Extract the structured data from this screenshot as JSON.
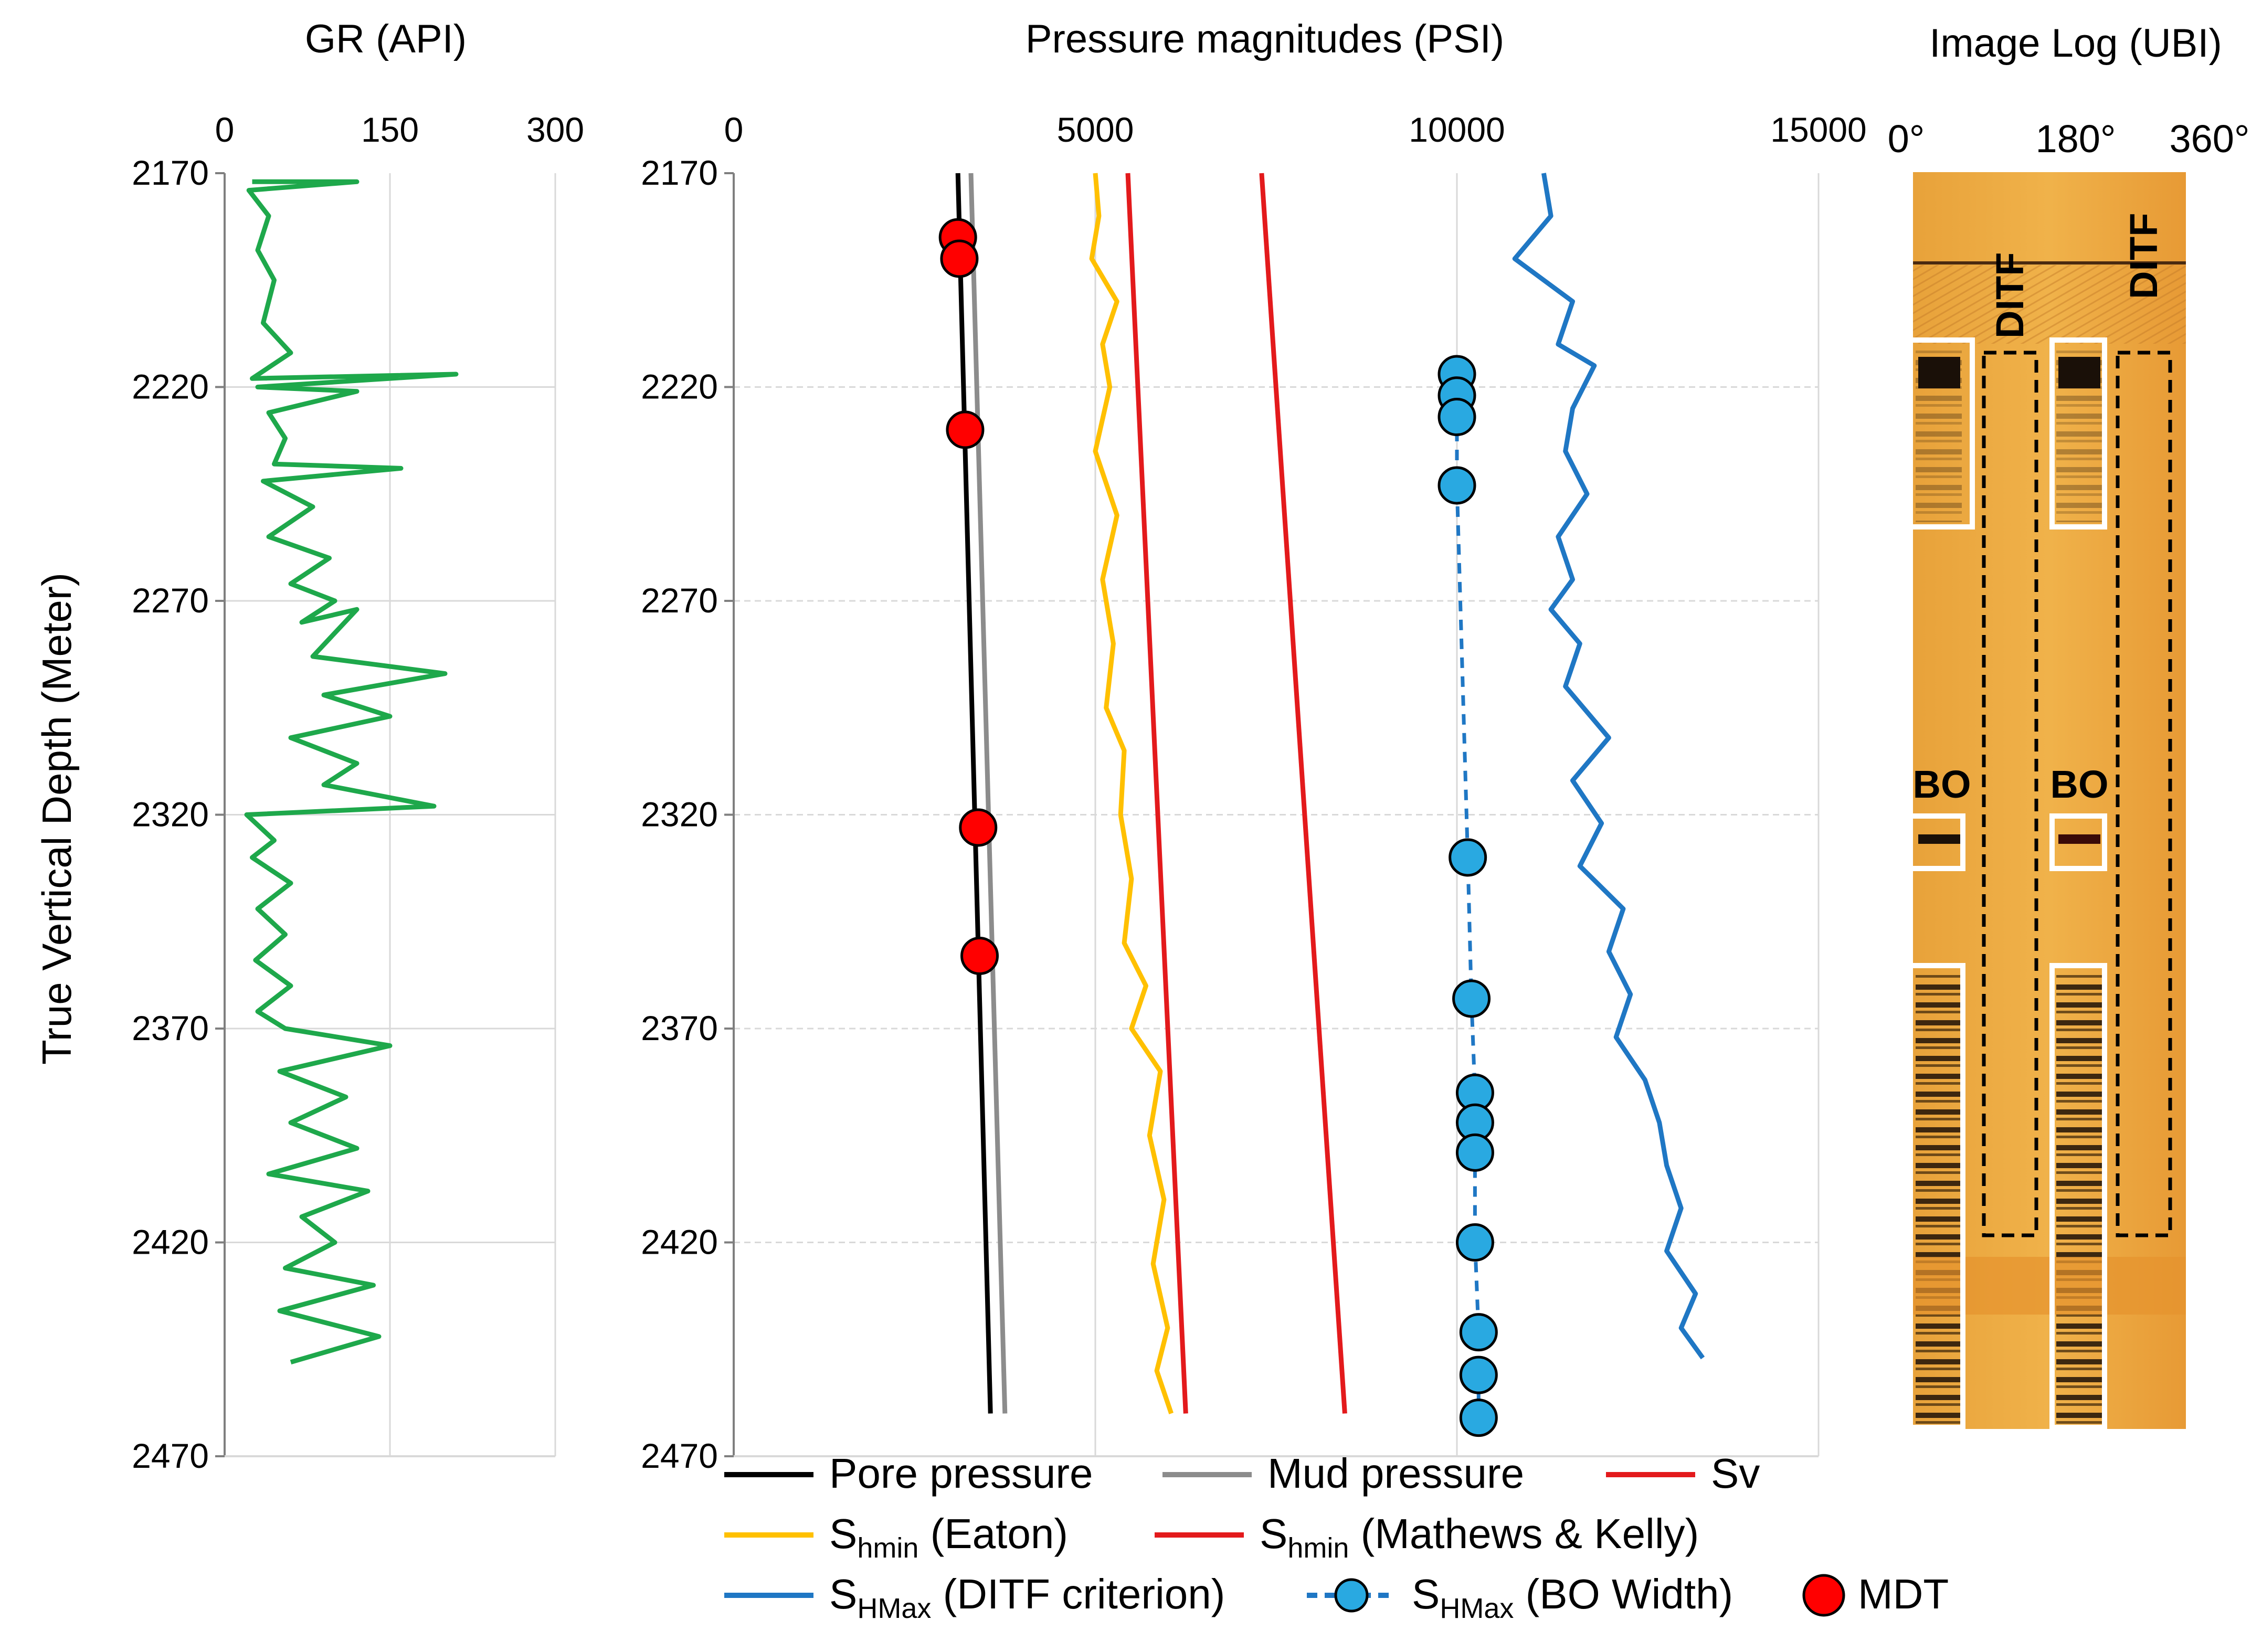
{
  "chart_data": [
    {
      "type": "line",
      "title": "GR (API)",
      "ylabel": "True Vertical Depth (Meter)",
      "xlim": [
        0,
        300
      ],
      "ylim": [
        2170,
        2470
      ],
      "y_inverted": true,
      "xticks": [
        "0",
        "150",
        "300"
      ],
      "yticks": [
        "2170",
        "2220",
        "2270",
        "2320",
        "2370",
        "2420",
        "2470"
      ],
      "grid": true,
      "series": [
        {
          "color": "#1ea84b",
          "points": [
            [
              25,
              2172
            ],
            [
              120,
              2172
            ],
            [
              22,
              2174
            ],
            [
              40,
              2180
            ],
            [
              30,
              2188
            ],
            [
              45,
              2195
            ],
            [
              35,
              2205
            ],
            [
              60,
              2212
            ],
            [
              25,
              2218
            ],
            [
              210,
              2217
            ],
            [
              30,
              2220
            ],
            [
              120,
              2221
            ],
            [
              40,
              2226
            ],
            [
              55,
              2232
            ],
            [
              45,
              2238
            ],
            [
              160,
              2239
            ],
            [
              35,
              2242
            ],
            [
              80,
              2248
            ],
            [
              40,
              2255
            ],
            [
              95,
              2260
            ],
            [
              60,
              2266
            ],
            [
              100,
              2270
            ],
            [
              70,
              2275
            ],
            [
              120,
              2272
            ],
            [
              80,
              2283
            ],
            [
              200,
              2287
            ],
            [
              90,
              2292
            ],
            [
              150,
              2297
            ],
            [
              60,
              2302
            ],
            [
              120,
              2308
            ],
            [
              90,
              2313
            ],
            [
              190,
              2318
            ],
            [
              20,
              2320
            ],
            [
              45,
              2326
            ],
            [
              25,
              2330
            ],
            [
              60,
              2336
            ],
            [
              30,
              2342
            ],
            [
              55,
              2348
            ],
            [
              28,
              2354
            ],
            [
              60,
              2360
            ],
            [
              30,
              2366
            ],
            [
              55,
              2370
            ],
            [
              150,
              2374
            ],
            [
              50,
              2380
            ],
            [
              110,
              2386
            ],
            [
              60,
              2392
            ],
            [
              120,
              2398
            ],
            [
              40,
              2404
            ],
            [
              130,
              2408
            ],
            [
              70,
              2414
            ],
            [
              100,
              2420
            ],
            [
              55,
              2426
            ],
            [
              135,
              2430
            ],
            [
              50,
              2436
            ],
            [
              140,
              2442
            ],
            [
              60,
              2448
            ]
          ]
        }
      ]
    },
    {
      "type": "line",
      "title": "Pressure magnitudes (PSI)",
      "xlim": [
        0,
        15000
      ],
      "ylim": [
        2170,
        2470
      ],
      "y_inverted": true,
      "xticks": [
        "0",
        "5000",
        "10000",
        "15000"
      ],
      "yticks": [
        "2170",
        "2220",
        "2270",
        "2320",
        "2370",
        "2420",
        "2470"
      ],
      "grid": true,
      "legend": "bottom",
      "series": [
        {
          "name": "Pore pressure",
          "color": "#000000",
          "points": [
            [
              3100,
              2170
            ],
            [
              3550,
              2460
            ]
          ]
        },
        {
          "name": "Mud pressure",
          "color": "#8c8c8c",
          "points": [
            [
              3280,
              2170
            ],
            [
              3750,
              2460
            ]
          ]
        },
        {
          "name": "Sv",
          "color": "#e31a1c",
          "points": [
            [
              7300,
              2170
            ],
            [
              8450,
              2460
            ]
          ]
        },
        {
          "name": "S",
          "sub": "hmin",
          "suffix": " (Eaton)",
          "color": "#ffc000",
          "points": [
            [
              5000,
              2170
            ],
            [
              5050,
              2180
            ],
            [
              4950,
              2190
            ],
            [
              5300,
              2200
            ],
            [
              5100,
              2210
            ],
            [
              5200,
              2220
            ],
            [
              5000,
              2235
            ],
            [
              5300,
              2250
            ],
            [
              5100,
              2265
            ],
            [
              5250,
              2280
            ],
            [
              5150,
              2295
            ],
            [
              5400,
              2305
            ],
            [
              5350,
              2320
            ],
            [
              5500,
              2335
            ],
            [
              5400,
              2350
            ],
            [
              5700,
              2360
            ],
            [
              5500,
              2370
            ],
            [
              5900,
              2380
            ],
            [
              5750,
              2395
            ],
            [
              5950,
              2410
            ],
            [
              5800,
              2425
            ],
            [
              6000,
              2440
            ],
            [
              5850,
              2450
            ],
            [
              6050,
              2460
            ]
          ]
        },
        {
          "name": "S",
          "sub": "hmin",
          "suffix": " (Mathews & Kelly)",
          "color": "#e31a1c",
          "points": [
            [
              5450,
              2170
            ],
            [
              6250,
              2460
            ]
          ]
        },
        {
          "name": "S",
          "sub": "HMax",
          "suffix": " (DITF criterion)",
          "color": "#1f77c4",
          "points": [
            [
              11200,
              2170
            ],
            [
              11300,
              2180
            ],
            [
              10800,
              2190
            ],
            [
              11600,
              2200
            ],
            [
              11400,
              2210
            ],
            [
              11900,
              2215
            ],
            [
              11600,
              2225
            ],
            [
              11500,
              2235
            ],
            [
              11800,
              2245
            ],
            [
              11400,
              2255
            ],
            [
              11600,
              2265
            ],
            [
              11300,
              2272
            ],
            [
              11700,
              2280
            ],
            [
              11500,
              2290
            ],
            [
              12100,
              2302
            ],
            [
              11600,
              2312
            ],
            [
              12000,
              2322
            ],
            [
              11700,
              2332
            ],
            [
              12300,
              2342
            ],
            [
              12100,
              2352
            ],
            [
              12400,
              2362
            ],
            [
              12200,
              2372
            ],
            [
              12600,
              2382
            ],
            [
              12800,
              2392
            ],
            [
              12900,
              2402
            ],
            [
              13100,
              2412
            ],
            [
              12900,
              2422
            ],
            [
              13300,
              2432
            ],
            [
              13100,
              2440
            ],
            [
              13400,
              2447
            ]
          ]
        },
        {
          "name": "S",
          "sub": "HMax",
          "suffix": " (BO Width)",
          "color": "#1f77c4",
          "dashed": true,
          "marker": "#29a9e1",
          "points": [
            [
              10000,
              2217
            ],
            [
              10000,
              2222
            ],
            [
              10000,
              2227
            ],
            [
              10000,
              2243
            ],
            [
              10150,
              2330
            ],
            [
              10200,
              2363
            ],
            [
              10250,
              2385
            ],
            [
              10250,
              2392
            ],
            [
              10250,
              2399
            ],
            [
              10250,
              2420
            ],
            [
              10300,
              2441
            ],
            [
              10300,
              2451
            ],
            [
              10300,
              2461
            ]
          ]
        },
        {
          "name": "MDT",
          "marker": "#ff0000",
          "markers_only": true,
          "points": [
            [
              3100,
              2185
            ],
            [
              3120,
              2190
            ],
            [
              3200,
              2230
            ],
            [
              3380,
              2323
            ],
            [
              3400,
              2353
            ]
          ]
        }
      ]
    },
    {
      "type": "image",
      "title": "Image Log (UBI)",
      "x_labels": [
        "0°",
        "180°",
        "360°"
      ],
      "annotations": [
        "DITF",
        "DITF",
        "BO",
        "BO"
      ]
    }
  ]
}
